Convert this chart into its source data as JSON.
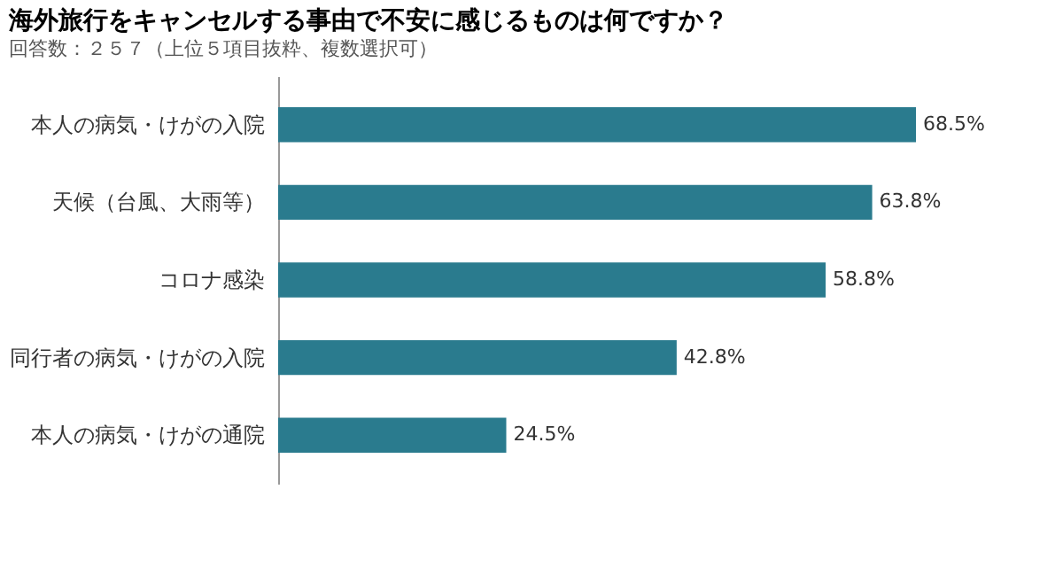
{
  "chart_data": {
    "type": "bar",
    "orientation": "horizontal",
    "title": "海外旅行をキャンセルする事由で不安に感じるものは何ですか？",
    "subtitle": "回答数：２５７（上位５項目抜粋、複数選択可）",
    "categories": [
      "本人の病気・けがの入院",
      "天候（台風、大雨等）",
      "コロナ感染",
      "同行者の病気・けがの入院",
      "本人の病気・けがの通院"
    ],
    "values": [
      68.5,
      63.8,
      58.8,
      42.8,
      24.5
    ],
    "value_labels": [
      "68.5%",
      "63.8%",
      "58.8%",
      "42.8%",
      "24.5%"
    ],
    "color": "#2a7b8e",
    "tick_labels": "y",
    "grid": false
  }
}
